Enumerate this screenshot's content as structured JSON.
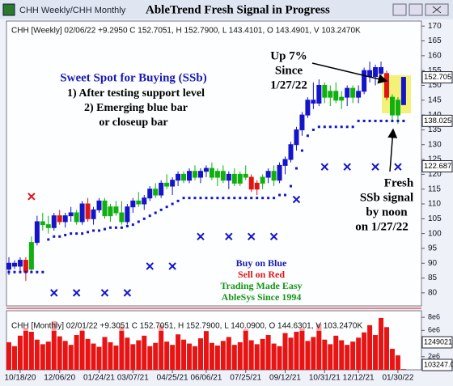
{
  "window_title": "CHH Weekly/CHH Monthly",
  "chart_data": [
    {
      "type": "candlestick",
      "title": "AbleTrend Fresh Signal in Progress",
      "legend_text": "CHH [Weekly] 02/06/22 +9.2950 C 152.7051, H 152.7900, L 143.4101, O 143.4901, V 103.2470K",
      "categories": [
        null,
        null,
        "10/18/20",
        null,
        null,
        null,
        null,
        null,
        null,
        "12/06/20",
        null,
        null,
        null,
        null,
        null,
        null,
        "01/24/21",
        null,
        null,
        null,
        null,
        null,
        "03/07/21",
        null,
        null,
        null,
        null,
        null,
        null,
        "04/25/21",
        null,
        null,
        null,
        null,
        null,
        "06/06/21",
        null,
        null,
        null,
        null,
        null,
        null,
        "07/25/21",
        null,
        null,
        null,
        null,
        null,
        null,
        "09/12/21",
        null,
        null,
        null,
        null,
        null,
        null,
        "10/31/21",
        null,
        null,
        null,
        null,
        null,
        "12/12/21",
        null,
        null,
        null,
        null,
        null,
        null,
        "01/30/22",
        null
      ],
      "open": [
        88,
        90,
        89,
        91,
        88,
        97,
        104,
        103,
        102,
        106,
        104,
        106,
        107,
        104,
        110,
        105,
        108,
        111,
        106,
        109,
        107,
        104,
        109,
        111,
        110,
        112,
        115,
        113,
        117,
        116,
        118,
        120,
        118,
        121,
        119,
        121,
        122,
        119,
        121,
        118,
        120,
        117,
        120,
        119,
        115,
        117,
        119,
        121,
        118,
        123,
        125,
        130,
        135,
        140,
        145,
        144,
        150,
        146,
        148,
        145,
        146,
        149,
        146,
        148,
        155,
        153,
        156,
        154,
        146,
        140,
        143.4901
      ],
      "high": [
        92,
        91,
        92,
        92,
        99,
        106,
        107,
        106,
        107,
        108,
        107,
        109,
        108,
        111,
        112,
        109,
        112,
        112,
        110,
        111,
        111,
        110,
        112,
        114,
        113,
        116,
        117,
        118,
        120,
        119,
        121,
        121,
        122,
        123,
        122,
        123,
        124,
        122,
        123,
        121,
        122,
        121,
        123,
        120,
        118,
        120,
        122,
        123,
        124,
        126,
        131,
        136,
        141,
        146,
        151,
        152,
        151,
        150,
        151,
        148,
        150,
        150,
        150,
        156,
        158,
        157,
        158,
        155,
        147,
        146,
        152.79
      ],
      "low": [
        86,
        88,
        87,
        84,
        87,
        96,
        101,
        100,
        101,
        103,
        102,
        104,
        103,
        103,
        104,
        103,
        107,
        105,
        104,
        106,
        103,
        103,
        107,
        109,
        108,
        111,
        112,
        112,
        115,
        113,
        116,
        117,
        117,
        118,
        117,
        119,
        118,
        116,
        117,
        115,
        116,
        116,
        118,
        114,
        113,
        115,
        117,
        116,
        117,
        120,
        124,
        128,
        133,
        139,
        142,
        143,
        144,
        143,
        144,
        142,
        143,
        144,
        144,
        147,
        151,
        150,
        152,
        145,
        138,
        137,
        143.4101
      ],
      "close": [
        90,
        89,
        91,
        87,
        97,
        104,
        103,
        102,
        106,
        104,
        106,
        107,
        104,
        110,
        105,
        108,
        111,
        106,
        109,
        107,
        104,
        109,
        111,
        110,
        112,
        115,
        113,
        117,
        116,
        118,
        120,
        118,
        121,
        119,
        121,
        122,
        119,
        121,
        118,
        120,
        117,
        120,
        119,
        115,
        117,
        119,
        121,
        118,
        123,
        125,
        130,
        135,
        140,
        145,
        144,
        150,
        146,
        148,
        145,
        146,
        149,
        146,
        148,
        155,
        153,
        156,
        154,
        146,
        140,
        145,
        152.7051
      ],
      "bar_colors": [
        "#1414c8",
        "#1414c8",
        "#1414c8",
        "#e01414",
        "#10b010",
        "#1414c8",
        "#10b010",
        "#10b010",
        "#1414c8",
        "#e01414",
        "#1414c8",
        "#1414c8",
        "#10b010",
        "#1414c8",
        "#e01414",
        "#1414c8",
        "#1414c8",
        "#10b010",
        "#10b010",
        "#10b010",
        "#10b010",
        "#1414c8",
        "#1414c8",
        "#10b010",
        "#1414c8",
        "#1414c8",
        "#10b010",
        "#1414c8",
        "#10b010",
        "#1414c8",
        "#1414c8",
        "#10b010",
        "#1414c8",
        "#10b010",
        "#1414c8",
        "#1414c8",
        "#10b010",
        "#10b010",
        "#10b010",
        "#1414c8",
        "#10b010",
        "#10b010",
        "#10b010",
        "#e01414",
        "#e01414",
        "#10b010",
        "#1414c8",
        "#10b010",
        "#1414c8",
        "#1414c8",
        "#1414c8",
        "#1414c8",
        "#1414c8",
        "#1414c8",
        "#1414c8",
        "#1414c8",
        "#10b010",
        "#10b010",
        "#10b010",
        "#10b010",
        "#1414c8",
        "#10b010",
        "#1414c8",
        "#1414c8",
        "#1414c8",
        "#1414c8",
        "#1414c8",
        "#e01414",
        "#10b010",
        "#10b010",
        "#1414c8"
      ],
      "stops": [
        87,
        87,
        87,
        87,
        87,
        87,
        87,
        98,
        99,
        99,
        99.5,
        100,
        100,
        100,
        100.5,
        101,
        101,
        101.5,
        102,
        102,
        102,
        102.5,
        103,
        104,
        105,
        106,
        107,
        108,
        109,
        110,
        111,
        112,
        112,
        112,
        112,
        112,
        112,
        112,
        112,
        112,
        112,
        112,
        112,
        112,
        112,
        112,
        112,
        112,
        113,
        113,
        116,
        122,
        128,
        133,
        135,
        136,
        136,
        136,
        136,
        136,
        136,
        136,
        138,
        138,
        138,
        138,
        138,
        138,
        138,
        138,
        138
      ],
      "stops_color": "#1414c8",
      "markers": [
        {
          "color": "#1414c8",
          "x": [
            8,
            12,
            17,
            21,
            25,
            29,
            34,
            39,
            43,
            47,
            51,
            56,
            60,
            65,
            69
          ],
          "values": [
            80,
            80,
            80,
            80,
            89,
            89,
            99,
            99,
            99,
            99,
            111.5,
            122.5,
            122.5,
            122.5,
            122.5
          ]
        },
        {
          "color": "#e01414",
          "x": [
            4
          ],
          "values": [
            112.5
          ]
        }
      ],
      "last_labels": [
        152.705,
        138.025,
        122.687
      ],
      "ylim": [
        75.6,
        171.7
      ],
      "yticks": [
        80,
        85,
        90,
        95,
        100,
        105,
        110,
        115,
        120,
        125,
        130,
        135,
        140,
        145,
        150,
        155,
        160,
        165,
        170
      ],
      "annotations": [
        "Sweet Spot for Buying (SSb)",
        "1) After testing support level",
        "2) Emerging blue bar",
        "or closeup bar",
        "Up 7%",
        "Since",
        "1/27/22",
        "Fresh",
        "SSb signal",
        "by noon",
        "on 1/27/22",
        "Buy on Blue",
        "Sell on Red",
        "Trading Made Easy",
        "AbleSys Since 1994"
      ]
    },
    {
      "type": "bar",
      "legend_text": "CHH [Monthly] 02/01/22 +9.3051 C 152.7051, H 152.7900, L 140.0900, O 144.6301, V 103.2470K",
      "color": "#e81414",
      "values": [
        4200000,
        3600000,
        5200000,
        6400000,
        5800000,
        4600000,
        3900000,
        4300000,
        7400000,
        5100000,
        4400000,
        3800000,
        5300000,
        6100000,
        4700000,
        4000000,
        3500000,
        5000000,
        4200000,
        3700000,
        6600000,
        4900000,
        3900000,
        4500000,
        5200000,
        3600000,
        4100000,
        6800000,
        4300000,
        3800000,
        5400000,
        4600000,
        4000000,
        3600000,
        4800000,
        5900000,
        4100000,
        3700000,
        4400000,
        5000000,
        3800000,
        4200000,
        6200000,
        4500000,
        3900000,
        4700000,
        5300000,
        4000000,
        3600000,
        5600000,
        4900000,
        5800000,
        6300000,
        4400000,
        5000000,
        7000000,
        4600000,
        3900000,
        5200000,
        4500000,
        3800000,
        4300000,
        4900000,
        5700000,
        6800000,
        5300000,
        7900000,
        6500000,
        3200000,
        2200000,
        103247
      ],
      "side_labels": [
        "1249021",
        "103247.0"
      ],
      "ylim": [
        0,
        9000000
      ],
      "yticks": [
        {
          "value": 2000000,
          "label": "2e6"
        },
        {
          "value": 4000000,
          "label": "4e6"
        },
        {
          "value": 6000000,
          "label": "6e6"
        },
        {
          "value": 8000000,
          "label": "8e6"
        }
      ]
    }
  ]
}
